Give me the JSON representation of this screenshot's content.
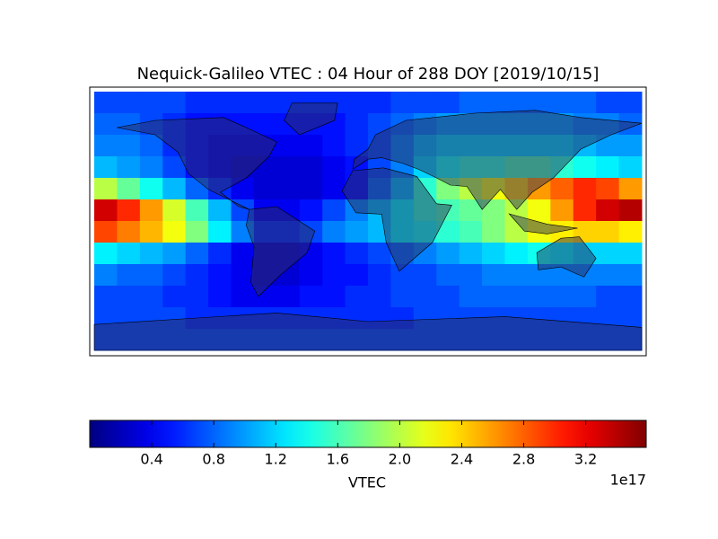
{
  "chart_data": {
    "type": "heatmap",
    "title": "Nequick-Galileo VTEC : 04 Hour of 288 DOY [2019/10/15]",
    "colormap": "jet",
    "z": [
      [
        0.7,
        0.7,
        0.7,
        0.7,
        0.6,
        0.6,
        0.6,
        0.6,
        0.6,
        0.6,
        0.6,
        0.6,
        0.6,
        0.7,
        0.7,
        0.7,
        0.8,
        0.8,
        0.8,
        0.8,
        0.8,
        0.8,
        0.7,
        0.7
      ],
      [
        0.8,
        0.8,
        0.7,
        0.6,
        0.5,
        0.5,
        0.5,
        0.5,
        0.5,
        0.5,
        0.5,
        0.6,
        0.7,
        0.8,
        0.9,
        1.0,
        1.0,
        1.0,
        1.0,
        1.0,
        1.0,
        0.9,
        0.9,
        0.8
      ],
      [
        0.9,
        0.9,
        0.8,
        0.6,
        0.5,
        0.4,
        0.4,
        0.4,
        0.4,
        0.4,
        0.5,
        0.6,
        0.7,
        0.9,
        1.1,
        1.2,
        1.2,
        1.2,
        1.2,
        1.2,
        1.2,
        1.1,
        1.0,
        1.0
      ],
      [
        1.1,
        1.0,
        0.9,
        0.7,
        0.5,
        0.4,
        0.3,
        0.3,
        0.3,
        0.3,
        0.4,
        0.5,
        0.7,
        0.9,
        1.2,
        1.4,
        1.5,
        1.5,
        1.6,
        1.6,
        1.5,
        1.4,
        1.3,
        1.2
      ],
      [
        2.0,
        1.7,
        1.4,
        1.1,
        0.8,
        0.6,
        0.4,
        0.3,
        0.3,
        0.3,
        0.4,
        0.5,
        0.8,
        1.1,
        1.5,
        1.8,
        2.0,
        2.2,
        2.4,
        2.6,
        2.8,
        3.0,
        2.9,
        2.6
      ],
      [
        3.3,
        3.0,
        2.6,
        2.1,
        1.6,
        1.1,
        0.7,
        0.4,
        0.4,
        0.5,
        0.7,
        0.9,
        1.1,
        1.3,
        1.5,
        1.6,
        1.7,
        1.8,
        2.0,
        2.2,
        2.6,
        3.0,
        3.3,
        3.4
      ],
      [
        2.9,
        2.7,
        2.5,
        2.2,
        1.8,
        1.3,
        0.9,
        0.6,
        0.6,
        0.7,
        0.9,
        1.0,
        1.1,
        1.3,
        1.4,
        1.5,
        1.6,
        1.8,
        2.0,
        2.2,
        2.3,
        2.4,
        2.4,
        2.3
      ],
      [
        1.3,
        1.2,
        1.1,
        1.0,
        0.8,
        0.6,
        0.4,
        0.3,
        0.3,
        0.4,
        0.5,
        0.6,
        0.7,
        0.8,
        0.9,
        1.0,
        1.1,
        1.2,
        1.3,
        1.4,
        1.3,
        1.2,
        1.2,
        1.2
      ],
      [
        0.9,
        0.8,
        0.8,
        0.7,
        0.6,
        0.5,
        0.4,
        0.3,
        0.3,
        0.4,
        0.5,
        0.5,
        0.6,
        0.7,
        0.7,
        0.8,
        0.8,
        0.9,
        0.9,
        0.9,
        0.9,
        0.9,
        0.9,
        0.9
      ],
      [
        0.7,
        0.7,
        0.7,
        0.6,
        0.6,
        0.5,
        0.4,
        0.4,
        0.4,
        0.5,
        0.5,
        0.6,
        0.6,
        0.7,
        0.7,
        0.7,
        0.8,
        0.8,
        0.8,
        0.8,
        0.8,
        0.8,
        0.7,
        0.7
      ],
      [
        0.7,
        0.7,
        0.7,
        0.7,
        0.6,
        0.6,
        0.6,
        0.6,
        0.6,
        0.6,
        0.6,
        0.6,
        0.6,
        0.6,
        0.7,
        0.7,
        0.7,
        0.7,
        0.7,
        0.7,
        0.7,
        0.7,
        0.7,
        0.7
      ],
      [
        0.7,
        0.7,
        0.7,
        0.7,
        0.7,
        0.7,
        0.7,
        0.7,
        0.7,
        0.7,
        0.7,
        0.7,
        0.7,
        0.7,
        0.7,
        0.7,
        0.7,
        0.7,
        0.7,
        0.7,
        0.7,
        0.7,
        0.7,
        0.7
      ]
    ],
    "clim": [
      0,
      3.59
    ],
    "colorbar_ticks": [
      0.4,
      0.8,
      1.2,
      1.6,
      {
        "value": 2,
        "label": "2.0"
      },
      2.4,
      2.8,
      3.2
    ],
    "colorbar_label": "VTEC",
    "colorbar_offset": "1e17"
  }
}
